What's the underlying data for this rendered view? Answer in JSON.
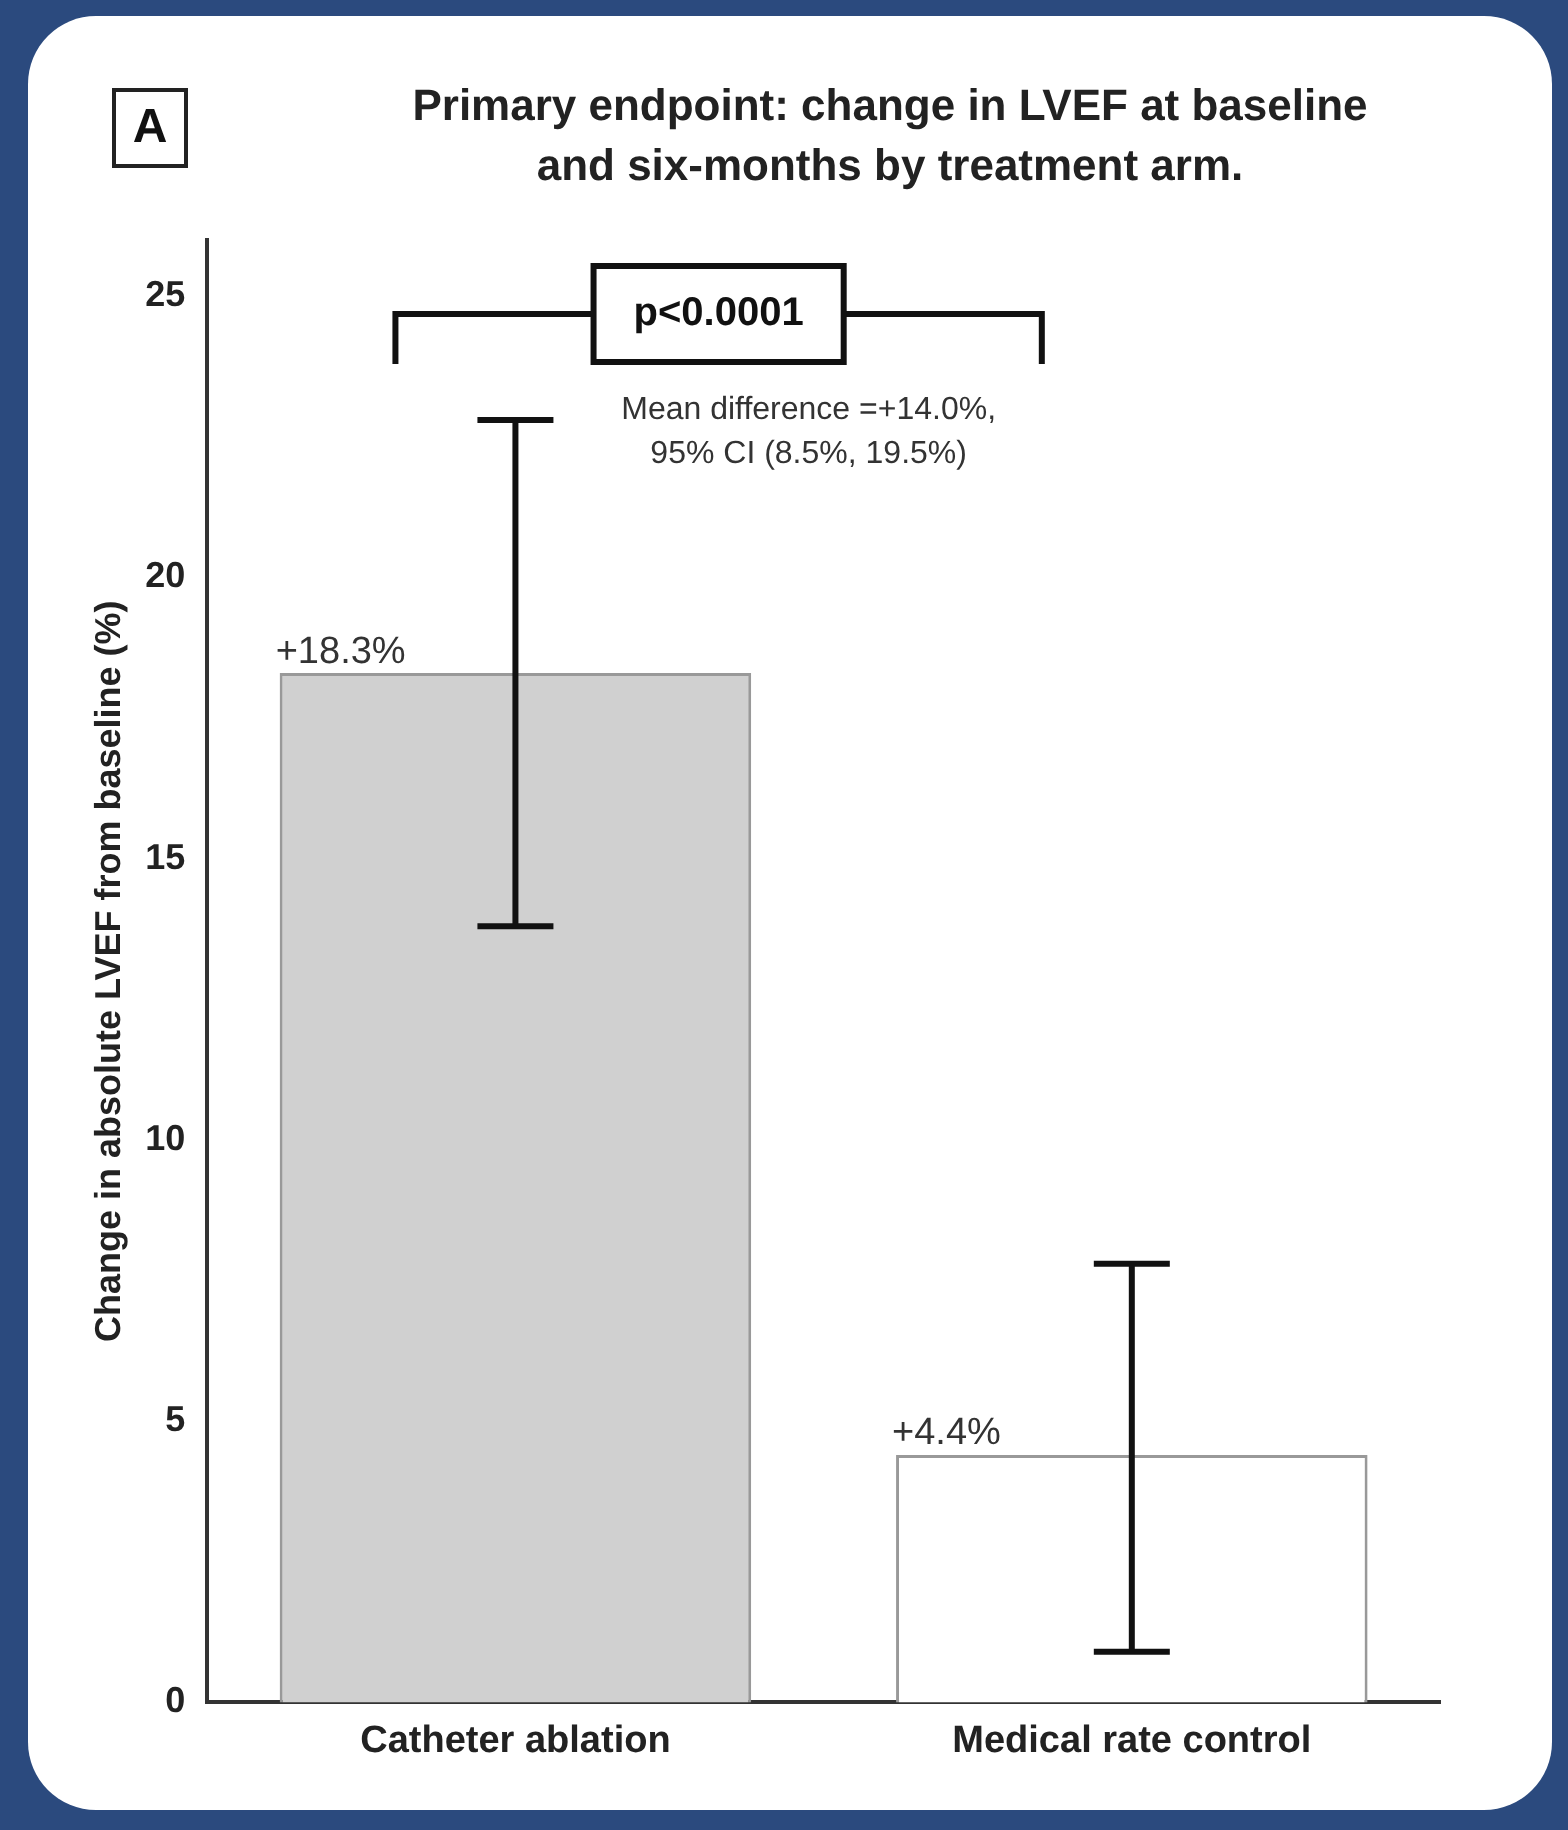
{
  "chart_data": {
    "type": "bar",
    "title": "Primary endpoint: change in LVEF at baseline\nand six-months by treatment arm.",
    "ylabel": "Change in absolute LVEF from baseline (%)",
    "categories": [
      "Catheter ablation",
      "Medical rate control"
    ],
    "values": [
      18.3,
      4.4
    ],
    "colors": [
      "#d0d0d0",
      "#ffffff"
    ],
    "errors": [
      [
        13.8,
        22.8
      ],
      [
        0.9,
        7.8
      ]
    ],
    "value_labels": [
      "+18.3%",
      "+4.4%"
    ],
    "ylim": [
      0,
      26
    ],
    "yticks": [
      0,
      5,
      10,
      15,
      20,
      25
    ],
    "grid": false,
    "legend": false,
    "annotations": [
      "A",
      "p<0.0001",
      "Mean difference =+14.0%,\n95% CI (8.5%, 19.5%)"
    ]
  }
}
